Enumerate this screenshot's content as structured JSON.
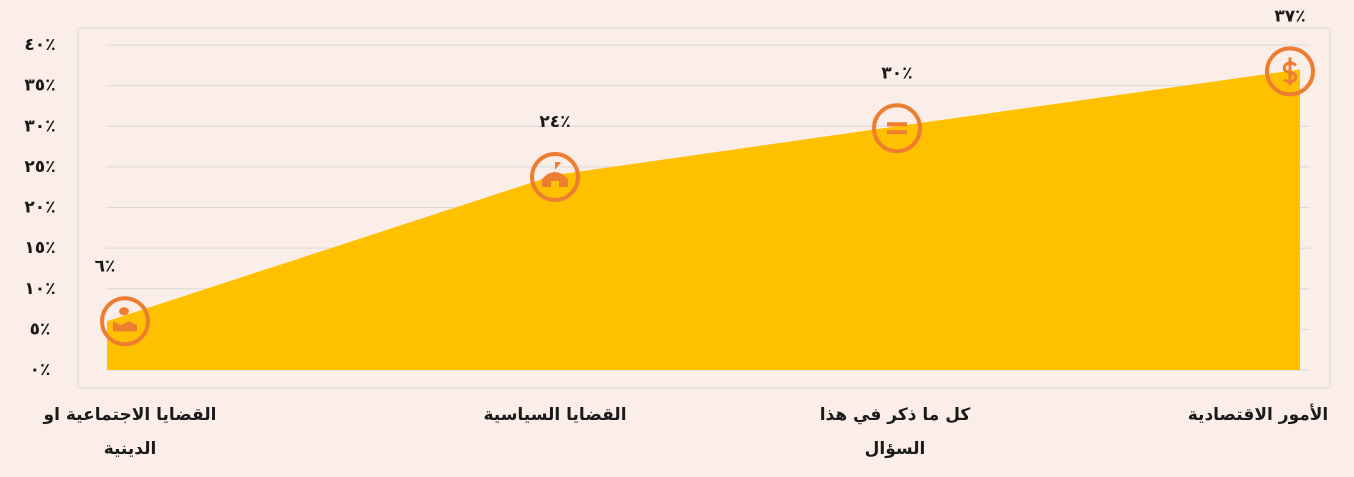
{
  "chart_data": {
    "type": "area",
    "categories": [
      "القضايا الاجتماعية او الدينية",
      "القضايا السياسية",
      "كل ما ذكر في هذا السؤال",
      "الأمور الاقتصادية"
    ],
    "values": [
      6,
      24,
      30,
      37
    ],
    "value_labels": [
      "٪٦",
      "٪٢٤",
      "٪٣٠",
      "٪٣٧"
    ],
    "color": "#ffc000",
    "marker_color": "#ed7d31",
    "ylim": [
      0,
      40
    ],
    "yticks": [
      {
        "value": 0,
        "label": "٪٠"
      },
      {
        "value": 5,
        "label": "٪٥"
      },
      {
        "value": 10,
        "label": "٪١٠"
      },
      {
        "value": 15,
        "label": "٪١٥"
      },
      {
        "value": 20,
        "label": "٪٢٠"
      },
      {
        "value": 25,
        "label": "٪٢٥"
      },
      {
        "value": 30,
        "label": "٪٣٠"
      },
      {
        "value": 35,
        "label": "٪٣٥"
      },
      {
        "value": 40,
        "label": "٪٤٠"
      }
    ],
    "grid": true
  }
}
